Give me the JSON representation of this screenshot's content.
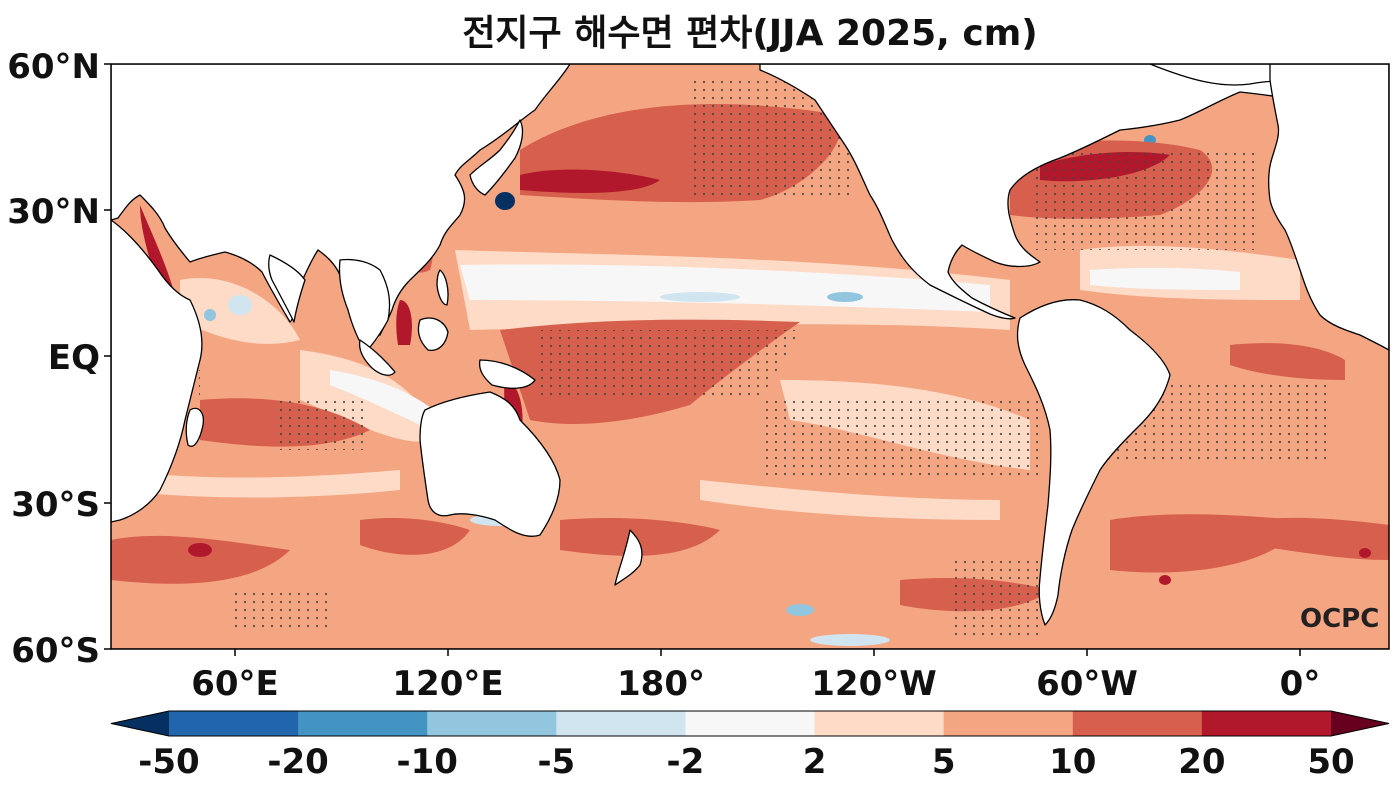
{
  "title": "전지구 해수면 편차(JJA 2025, cm)",
  "logo": "OCPC",
  "map": {
    "projection": "equirectangular",
    "lon_range": [
      20,
      380
    ],
    "lat_range": [
      -60,
      60
    ],
    "stippling": "significance dots"
  },
  "axes": {
    "y_ticks": [
      {
        "lat": 60,
        "label": "60°N"
      },
      {
        "lat": 30,
        "label": "30°N"
      },
      {
        "lat": 0,
        "label": "EQ"
      },
      {
        "lat": -30,
        "label": "30°S"
      },
      {
        "lat": -60,
        "label": "60°S"
      }
    ],
    "x_ticks": [
      {
        "lon": 60,
        "label": "60°E"
      },
      {
        "lon": 120,
        "label": "120°E"
      },
      {
        "lon": 180,
        "label": "180°"
      },
      {
        "lon": 240,
        "label": "120°W"
      },
      {
        "lon": 300,
        "label": "60°W"
      },
      {
        "lon": 360,
        "label": "0°"
      }
    ]
  },
  "colorbar": {
    "labels": [
      "-50",
      "-20",
      "-10",
      "-5",
      "-2",
      "2",
      "5",
      "10",
      "20",
      "50"
    ],
    "colors": [
      "#053061",
      "#2166ac",
      "#4393c3",
      "#92c5de",
      "#d1e5f0",
      "#f7f7f7",
      "#fddbc7",
      "#f4a582",
      "#d6604d",
      "#b2182b",
      "#67001f"
    ],
    "land_color": "#ffffff",
    "coast_color": "#000000"
  }
}
